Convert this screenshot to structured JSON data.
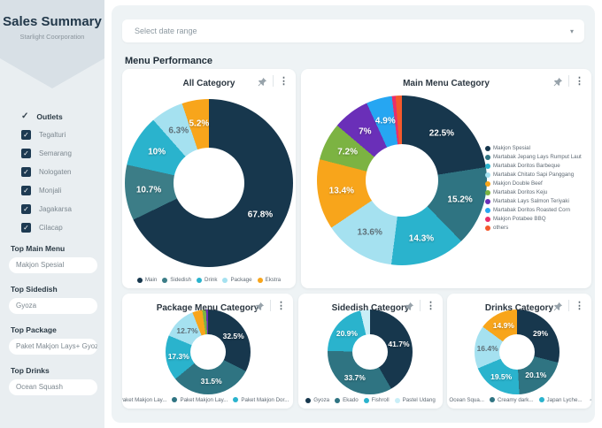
{
  "sidebar": {
    "title": "Sales Summary",
    "subtitle": "Starlight Coorporation",
    "outlets_label": "Outlets",
    "outlets": [
      "Tegalturi",
      "Semarang",
      "Nologaten",
      "Monjali",
      "Jagakarsa",
      "Cilacap"
    ],
    "tops": [
      {
        "label": "Top Main Menu",
        "value": "Makjon Spesial"
      },
      {
        "label": "Top Sidedish",
        "value": "Gyoza"
      },
      {
        "label": "Top Package",
        "value": "Paket Makjon Lays+ Gyoza"
      },
      {
        "label": "Top Drinks",
        "value": "Ocean Squash"
      }
    ]
  },
  "toolbar": {
    "date_range_placeholder": "Select date range"
  },
  "section_title": "Menu Performance",
  "icons": {
    "check": "✓",
    "kebab": "⋮",
    "caret": "▾",
    "pager_left": "◂",
    "pager_right": "▸"
  },
  "theme": {
    "navy": "#17374d",
    "teal": "#2f7482",
    "cyan": "#2ab3cd",
    "light_cyan": "#a5e1f0",
    "orange": "#f8a51b",
    "panel_bg": "#eef3f5",
    "sidebar_bg": "#e9eef1",
    "sidebar_header_bg": "#d8e0e6",
    "card_bg": "#ffffff"
  },
  "chart_data": [
    {
      "type": "pie",
      "title": "All Category",
      "donut": true,
      "legend_position": "bottom",
      "slices": [
        {
          "label": "Main",
          "value": 67.8,
          "display": "67.8%",
          "color": "#17374d"
        },
        {
          "label": "Sidedish",
          "value": 10.7,
          "display": "10.7%",
          "color": "#3c7d87"
        },
        {
          "label": "Drink",
          "value": 10.0,
          "display": "10%",
          "color": "#2ab3cd"
        },
        {
          "label": "Package",
          "value": 6.3,
          "display": "6.3%",
          "color": "#a5e1f0",
          "text_color": "#5f7078"
        },
        {
          "label": "Ekstra",
          "value": 5.2,
          "display": "5.2%",
          "color": "#f8a51b"
        }
      ]
    },
    {
      "type": "pie",
      "title": "Main Menu Category",
      "donut": true,
      "legend_position": "right",
      "slices": [
        {
          "label": "Makjon Spesial",
          "value": 22.5,
          "display": "22.5%",
          "color": "#17374d"
        },
        {
          "label": "Martabak Jepang Lays Rumput Laut",
          "value": 15.2,
          "display": "15.2%",
          "color": "#2f7482"
        },
        {
          "label": "Martabak Doritos Barbeque",
          "value": 14.3,
          "display": "14.3%",
          "color": "#2ab3cd"
        },
        {
          "label": "Martabak Chitato Sapi Panggang",
          "value": 13.6,
          "display": "13.6%",
          "color": "#a5e1f0",
          "text_color": "#5f7078"
        },
        {
          "label": "Makjon Double Beef",
          "value": 13.4,
          "display": "13.4%",
          "color": "#f8a51b"
        },
        {
          "label": "Martabak Doritos Keju",
          "value": 7.2,
          "display": "7.2%",
          "color": "#7cb342"
        },
        {
          "label": "Martabak Lays Salmon Teriyaki",
          "value": 7.0,
          "display": "7%",
          "color": "#6a2fb8"
        },
        {
          "label": "Martabak Doritos Roasted Corn",
          "value": 4.9,
          "display": "4.9%",
          "color": "#26a6f2"
        },
        {
          "label": "Makjon Potabee BBQ",
          "value": 0.7,
          "color": "#ea2e6a"
        },
        {
          "label": "others",
          "value": 1.2,
          "color": "#f4592c"
        }
      ]
    },
    {
      "type": "pie",
      "title": "Package Menu Category",
      "donut": true,
      "legend_position": "bottom",
      "legend_pager": true,
      "slices": [
        {
          "label": "Paket Makjon Lay...",
          "value": 32.5,
          "display": "32.5%",
          "color": "#17374d"
        },
        {
          "label": "Paket Makjon Lay...",
          "value": 31.5,
          "display": "31.5%",
          "color": "#2f7482"
        },
        {
          "label": "Paket Makjon Dor...",
          "value": 17.3,
          "display": "17.3%",
          "color": "#2ab3cd"
        },
        {
          "label": "",
          "value": 12.7,
          "display": "12.7%",
          "color": "#a5e1f0",
          "text_color": "#5f7078"
        },
        {
          "label": "",
          "value": 3.8,
          "color": "#f8a51b"
        },
        {
          "label": "",
          "value": 1.4,
          "color": "#7cb342"
        },
        {
          "label": "",
          "value": 0.8,
          "color": "#6a2fb8"
        }
      ]
    },
    {
      "type": "pie",
      "title": "Sidedish Category",
      "donut": true,
      "legend_position": "bottom",
      "slices": [
        {
          "label": "Gyoza",
          "value": 41.7,
          "display": "41.7%",
          "color": "#17374d"
        },
        {
          "label": "Ekado",
          "value": 33.7,
          "display": "33.7%",
          "color": "#2f7482"
        },
        {
          "label": "Fishroll",
          "value": 20.9,
          "display": "20.9%",
          "color": "#2ab3cd"
        },
        {
          "label": "Pastel Udang",
          "value": 3.7,
          "color": "#c9eef7"
        }
      ]
    },
    {
      "type": "pie",
      "title": "Drinks Category",
      "donut": true,
      "legend_position": "bottom",
      "legend_pager": true,
      "slices": [
        {
          "label": "Ocean Squa...",
          "value": 29.0,
          "display": "29%",
          "color": "#17374d"
        },
        {
          "label": "Creamy dark...",
          "value": 20.1,
          "display": "20.1%",
          "color": "#2f7482"
        },
        {
          "label": "Japan Lyche...",
          "value": 19.5,
          "display": "19.5%",
          "color": "#2ab3cd"
        },
        {
          "label": "",
          "value": 16.4,
          "display": "16.4%",
          "color": "#a5e1f0",
          "text_color": "#5f7078"
        },
        {
          "label": "",
          "value": 14.9,
          "display": "14.9%",
          "color": "#f8a51b"
        }
      ]
    }
  ]
}
